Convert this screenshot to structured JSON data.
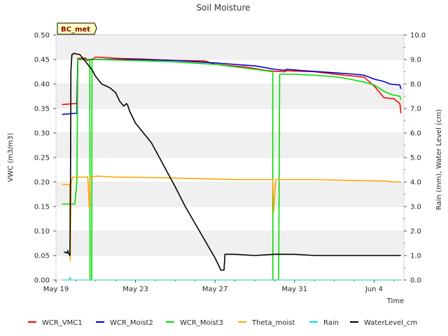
{
  "chart_data": {
    "type": "line",
    "title": "Soil Moisture",
    "site_label": "BC_met",
    "xlabel": "Time",
    "ylabel": "VWC (m3/m3)",
    "y2label": "Rain (mm), Water Level (cm)",
    "xlim": [
      0,
      17.5
    ],
    "ylim": [
      0,
      0.5
    ],
    "y2lim": [
      0,
      10
    ],
    "xticks": [
      {
        "value": 0,
        "label": "May 19"
      },
      {
        "value": 4,
        "label": "May 23"
      },
      {
        "value": 8,
        "label": "May 27"
      },
      {
        "value": 12,
        "label": "May 31"
      },
      {
        "value": 16,
        "label": "Jun 4"
      }
    ],
    "yticks": [
      {
        "value": 0.0,
        "label": "0.00"
      },
      {
        "value": 0.05,
        "label": "0.05"
      },
      {
        "value": 0.1,
        "label": "0.10"
      },
      {
        "value": 0.15,
        "label": "0.15"
      },
      {
        "value": 0.2,
        "label": "0.20"
      },
      {
        "value": 0.25,
        "label": "0.25"
      },
      {
        "value": 0.3,
        "label": "0.30"
      },
      {
        "value": 0.35,
        "label": "0.35"
      },
      {
        "value": 0.4,
        "label": "0.40"
      },
      {
        "value": 0.45,
        "label": "0.45"
      },
      {
        "value": 0.5,
        "label": "0.50"
      }
    ],
    "y2ticks": [
      {
        "value": 0,
        "label": "0.0"
      },
      {
        "value": 1,
        "label": "1.0"
      },
      {
        "value": 2,
        "label": "2.0"
      },
      {
        "value": 3,
        "label": "3.0"
      },
      {
        "value": 4,
        "label": "4.0"
      },
      {
        "value": 5,
        "label": "5.0"
      },
      {
        "value": 6,
        "label": "6.0"
      },
      {
        "value": 7,
        "label": "7.0"
      },
      {
        "value": 8,
        "label": "8.0"
      },
      {
        "value": 9,
        "label": "9.0"
      },
      {
        "value": 10,
        "label": "10.0"
      }
    ],
    "series": [
      {
        "name": "WCR_VMC1",
        "color": "#ff0000",
        "axis": "left",
        "x": [
          0.3,
          0.9,
          1.05,
          1.1,
          1.5,
          1.55,
          1.8,
          2.0,
          2.8,
          3.3,
          4.3,
          6.0,
          7.5,
          8.0,
          9.5,
          10.5,
          11.0,
          11.5,
          11.6,
          13.0,
          14.5,
          15.5,
          16.0,
          16.5,
          17.0,
          17.3,
          17.35
        ],
        "y": [
          0.358,
          0.36,
          0.36,
          0.452,
          0.453,
          0.448,
          0.45,
          0.455,
          0.453,
          0.452,
          0.451,
          0.448,
          0.447,
          0.44,
          0.435,
          0.428,
          0.426,
          0.425,
          0.427,
          0.425,
          0.418,
          0.414,
          0.396,
          0.372,
          0.37,
          0.36,
          0.34
        ]
      },
      {
        "name": "WCR_Moist2",
        "color": "#0000cc",
        "axis": "left",
        "x": [
          0.3,
          0.9,
          1.05,
          1.1,
          1.6,
          2.0,
          4.0,
          6.0,
          8.0,
          9.0,
          10.0,
          11.0,
          11.5,
          11.6,
          12.5,
          14.0,
          15.0,
          15.5,
          16.0,
          16.5,
          16.8,
          17.3,
          17.35
        ],
        "y": [
          0.338,
          0.34,
          0.34,
          0.45,
          0.45,
          0.45,
          0.45,
          0.448,
          0.443,
          0.44,
          0.437,
          0.43,
          0.428,
          0.43,
          0.427,
          0.423,
          0.42,
          0.418,
          0.41,
          0.405,
          0.4,
          0.398,
          0.39
        ]
      },
      {
        "name": "WCR_Moist3",
        "color": "#00dd00",
        "axis": "left",
        "x": [
          0.3,
          0.95,
          1.05,
          1.1,
          1.7,
          1.71,
          1.78,
          1.8,
          1.81,
          1.85,
          2.0,
          4.0,
          6.0,
          8.0,
          9.0,
          10.0,
          10.9,
          10.91,
          11.0,
          11.15,
          11.2,
          11.25,
          12.0,
          13.0,
          14.0,
          14.5,
          15.0,
          15.5,
          16.0,
          16.5,
          16.9,
          17.3,
          17.35
        ],
        "y": [
          0.155,
          0.155,
          0.2,
          0.45,
          0.45,
          0.0,
          0.0,
          0.0,
          0.45,
          0.45,
          0.45,
          0.448,
          0.445,
          0.44,
          0.435,
          0.43,
          0.425,
          0.0,
          0.0,
          0.0,
          0.0,
          0.42,
          0.42,
          0.418,
          0.415,
          0.412,
          0.408,
          0.404,
          0.398,
          0.385,
          0.378,
          0.375,
          0.368
        ]
      },
      {
        "name": "Theta_moist",
        "color": "#ffa500",
        "axis": "left",
        "x": [
          0.3,
          0.7,
          0.72,
          0.75,
          0.8,
          0.85,
          1.0,
          1.1,
          1.6,
          1.68,
          1.72,
          1.8,
          2.0,
          3.0,
          5.0,
          7.0,
          9.0,
          10.5,
          10.9,
          10.95,
          11.05,
          11.3,
          13.0,
          15.0,
          16.5,
          17.0,
          17.35
        ],
        "y": [
          0.195,
          0.195,
          0.04,
          0.195,
          0.205,
          0.21,
          0.21,
          0.21,
          0.21,
          0.145,
          0.21,
          0.21,
          0.212,
          0.21,
          0.209,
          0.207,
          0.205,
          0.205,
          0.205,
          0.14,
          0.205,
          0.205,
          0.205,
          0.203,
          0.202,
          0.2,
          0.2
        ]
      },
      {
        "name": "Rain",
        "color": "#00e5e5",
        "axis": "right",
        "x": [
          0.3,
          0.65,
          0.7,
          0.75,
          1.0,
          17.35
        ],
        "y": [
          0.0,
          0.0,
          0.1,
          0.0,
          0.0,
          0.0
        ]
      },
      {
        "name": "WaterLevel_cm",
        "color": "#000000",
        "axis": "right",
        "x": [
          0.4,
          0.55,
          0.6,
          0.62,
          0.7,
          0.73,
          0.75,
          0.8,
          0.9,
          1.2,
          1.4,
          1.6,
          1.8,
          2.0,
          2.3,
          2.7,
          3.0,
          3.2,
          3.4,
          3.55,
          3.6,
          3.7,
          4.0,
          4.4,
          4.8,
          5.2,
          5.6,
          6.0,
          6.5,
          7.0,
          7.5,
          8.0,
          8.3,
          8.45,
          8.5,
          9.0,
          10.0,
          11.0,
          12.0,
          13.0,
          14.0,
          15.0,
          16.0,
          17.0,
          17.35
        ],
        "y": [
          1.15,
          1.1,
          1.2,
          1.1,
          1.0,
          4.0,
          8.5,
          9.2,
          9.25,
          9.2,
          9.0,
          8.8,
          8.6,
          8.3,
          8.0,
          7.85,
          7.65,
          7.3,
          7.1,
          7.2,
          7.15,
          6.9,
          6.4,
          6.0,
          5.6,
          5.0,
          4.4,
          3.8,
          3.0,
          2.3,
          1.6,
          0.9,
          0.4,
          0.4,
          1.05,
          1.05,
          1.0,
          1.05,
          1.05,
          1.0,
          1.0,
          1.0,
          1.0,
          1.0,
          1.0
        ]
      }
    ]
  }
}
